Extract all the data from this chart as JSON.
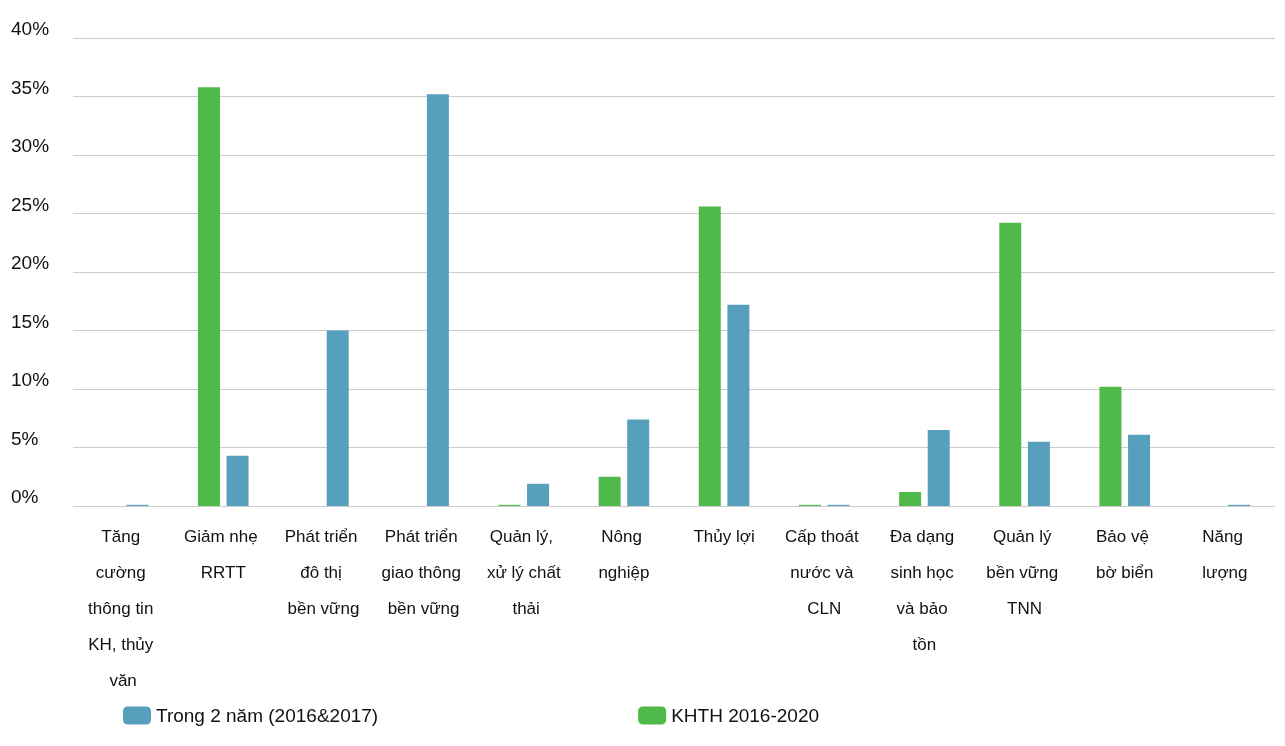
{
  "chart_data": {
    "type": "bar",
    "categories": [
      "Tăng cường thông tin KH, thủy văn",
      "Giảm nhẹ RRTT",
      "Phát triển đô thị bền vững",
      "Phát triển giao thông bền vững",
      "Quản lý, xử lý chất thải",
      "Nông nghiệp",
      "Thủy lợi",
      "Cấp thoát nước và CLN",
      "Đa dạng sinh học và bảo tồn",
      "Quản lý bền vững TNN",
      "Bảo vệ bờ biển",
      "Năng lượng"
    ],
    "series": [
      {
        "name": "KHTH 2016-2020",
        "color": "#4fba4a",
        "values": [
          null,
          35.8,
          null,
          null,
          0.1,
          2.5,
          25.6,
          0.1,
          1.2,
          24.2,
          10.2,
          null
        ]
      },
      {
        "name": "Trong 2 năm (2016&2017)",
        "color": "#56a0be",
        "values": [
          0.1,
          4.3,
          15.0,
          35.2,
          1.9,
          7.4,
          17.2,
          0.1,
          6.5,
          5.5,
          6.1,
          0.1
        ]
      }
    ],
    "ylim": [
      0,
      40
    ],
    "yticks": [
      {
        "value": 0,
        "label": "0%"
      },
      {
        "value": 5,
        "label": "5%"
      },
      {
        "value": 10,
        "label": "10%"
      },
      {
        "value": 15,
        "label": "15%"
      },
      {
        "value": 20,
        "label": "20%"
      },
      {
        "value": 25,
        "label": "25%"
      },
      {
        "value": 30,
        "label": "30%"
      },
      {
        "value": 35,
        "label": "35%"
      },
      {
        "value": 40,
        "label": "40%"
      }
    ],
    "grid": "y",
    "legend": "bottom"
  }
}
